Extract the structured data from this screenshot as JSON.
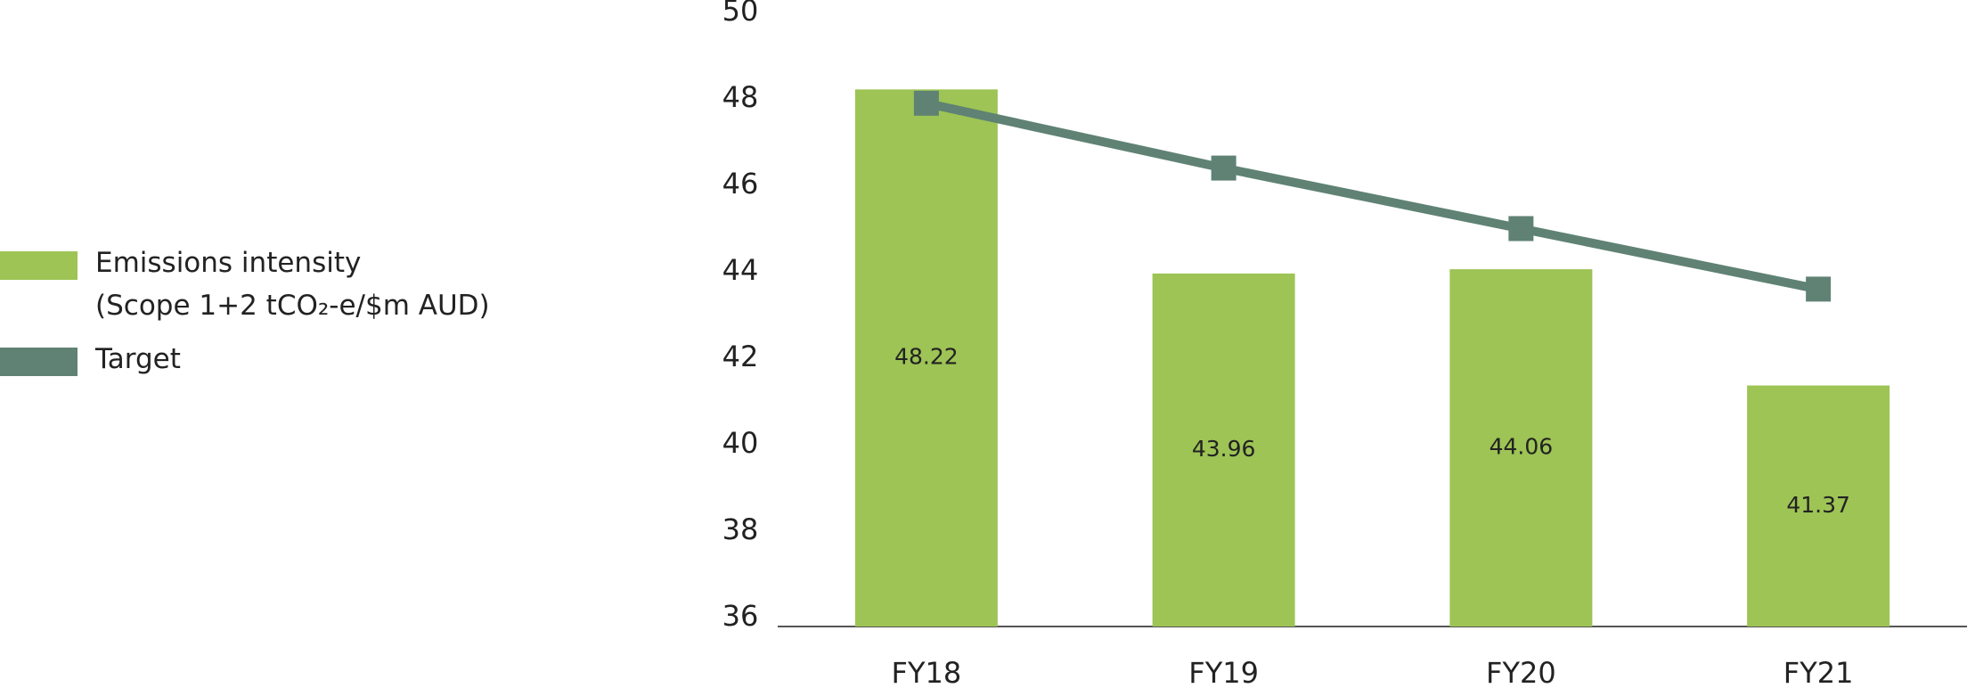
{
  "chart_data": {
    "type": "bar",
    "categories": [
      "FY18",
      "FY19",
      "FY20",
      "FY21"
    ],
    "series": [
      {
        "name": "Emissions intensity\n(Scope 1+2 tCO₂-e/$m AUD)",
        "type": "bar",
        "color": "#9dc455",
        "values": [
          48.22,
          43.96,
          44.06,
          41.37
        ]
      },
      {
        "name": "Target",
        "type": "line",
        "color": "#5f8274",
        "values": [
          47.9,
          46.4,
          45.0,
          43.6
        ]
      }
    ],
    "ylim": [
      36,
      50
    ],
    "yticks": [
      36,
      38,
      40,
      42,
      44,
      46,
      48,
      50
    ]
  }
}
